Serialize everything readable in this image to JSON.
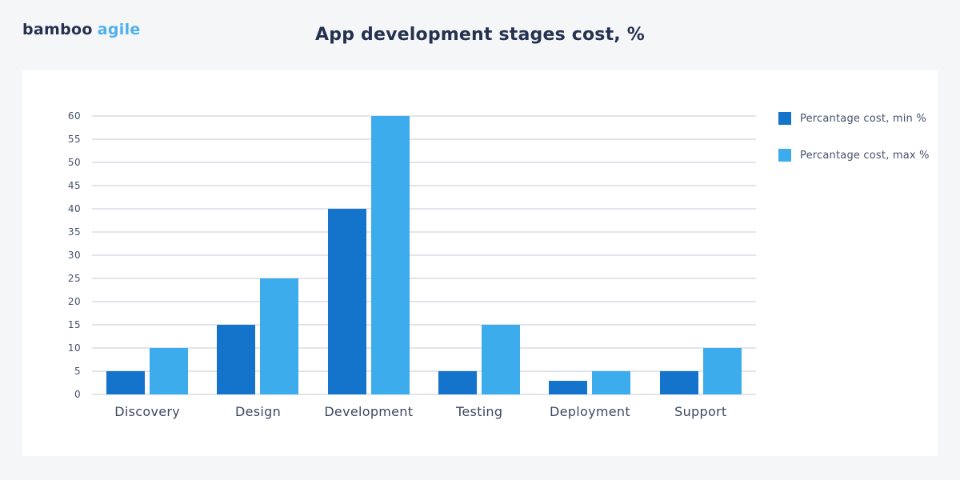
{
  "page": {
    "background_color": "#F5F6F8",
    "card_color": "#FFFFFF"
  },
  "header": {
    "logo_part1": "bamboo",
    "logo_part2": "agile",
    "logo_part1_color": "#25314E",
    "logo_part2_color": "#4FB0EE",
    "title": "App development stages cost, %"
  },
  "chart_data": {
    "type": "bar",
    "title": "App development stages cost, %",
    "categories": [
      "Discovery",
      "Design",
      "Development",
      "Testing",
      "Deployment",
      "Support"
    ],
    "series": [
      {
        "name": "Percantage cost, min %",
        "color": "#1473CB",
        "values": [
          5,
          15,
          40,
          5,
          3,
          5
        ]
      },
      {
        "name": "Percantage cost, max %",
        "color": "#3DACEC",
        "values": [
          10,
          25,
          60,
          15,
          5,
          10
        ]
      }
    ],
    "xlabel": "",
    "ylabel": "",
    "ylim": [
      0,
      60
    ],
    "yticks": [
      0,
      5,
      10,
      15,
      20,
      25,
      30,
      35,
      40,
      45,
      50,
      55,
      60
    ],
    "grid": true,
    "gridline_color": "#E1E5EB",
    "axis_text_color": "#44506B",
    "legend_position": "right"
  }
}
